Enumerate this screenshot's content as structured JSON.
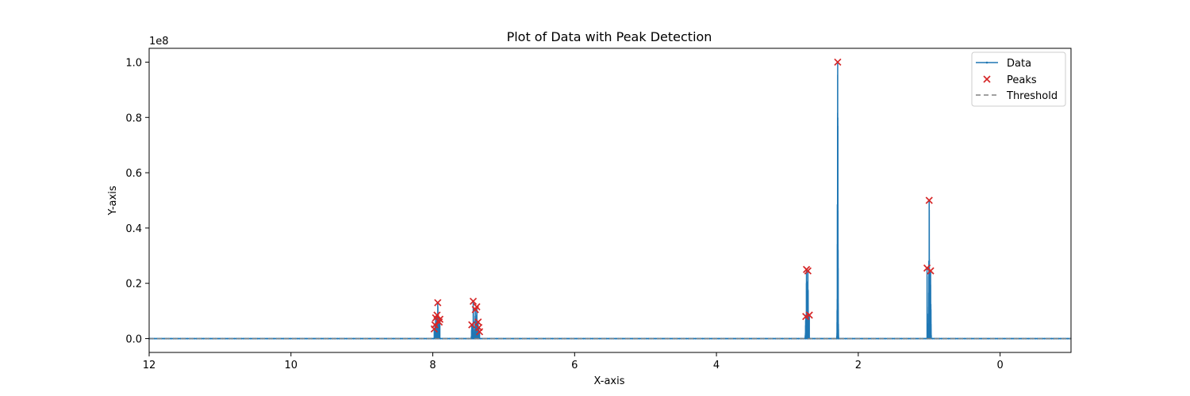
{
  "chart_data": {
    "type": "line",
    "title": "Plot of Data with Peak Detection",
    "xlabel": "X-axis",
    "ylabel": "Y-axis",
    "y_offset_label": "1e8",
    "x_inverted": true,
    "xlim": [
      12,
      -1
    ],
    "ylim": [
      -5000000,
      105000000
    ],
    "x_ticks": [
      12,
      10,
      8,
      6,
      4,
      2,
      0
    ],
    "x_tick_labels": [
      "12",
      "10",
      "8",
      "6",
      "4",
      "2",
      "0"
    ],
    "y_ticks": [
      0,
      20000000,
      40000000,
      60000000,
      80000000,
      100000000
    ],
    "y_tick_labels": [
      "0.0",
      "0.2",
      "0.4",
      "0.6",
      "0.8",
      "1.0"
    ],
    "grid": false,
    "legend_position": "top-right",
    "colors": {
      "data": "#1f77b4",
      "peaks": "#d62728",
      "threshold": "#808080"
    },
    "series": [
      {
        "name": "Data",
        "kind": "line",
        "clusters": [
          {
            "x_start": 7.98,
            "x_end": 7.9,
            "peak": 13000000
          },
          {
            "x_start": 7.46,
            "x_end": 7.34,
            "peak": 13500000
          },
          {
            "x_start": 2.75,
            "x_end": 2.69,
            "peak": 25000000
          },
          {
            "x_start": 2.31,
            "x_end": 2.27,
            "peak": 100000000
          },
          {
            "x_start": 1.03,
            "x_end": 0.97,
            "peak": 50000000
          }
        ]
      },
      {
        "name": "Peaks",
        "kind": "scatter",
        "points": [
          {
            "x": 7.98,
            "y": 3500000
          },
          {
            "x": 7.97,
            "y": 5000000
          },
          {
            "x": 7.96,
            "y": 7500000
          },
          {
            "x": 7.94,
            "y": 8500000
          },
          {
            "x": 7.93,
            "y": 13000000
          },
          {
            "x": 7.91,
            "y": 6000000
          },
          {
            "x": 7.9,
            "y": 7000000
          },
          {
            "x": 7.45,
            "y": 5000000
          },
          {
            "x": 7.43,
            "y": 13500000
          },
          {
            "x": 7.4,
            "y": 10500000
          },
          {
            "x": 7.38,
            "y": 11500000
          },
          {
            "x": 7.36,
            "y": 6000000
          },
          {
            "x": 7.35,
            "y": 4000000
          },
          {
            "x": 7.34,
            "y": 2500000
          },
          {
            "x": 2.74,
            "y": 8000000
          },
          {
            "x": 2.73,
            "y": 25000000
          },
          {
            "x": 2.71,
            "y": 24500000
          },
          {
            "x": 2.69,
            "y": 8500000
          },
          {
            "x": 2.29,
            "y": 100000000
          },
          {
            "x": 1.03,
            "y": 25500000
          },
          {
            "x": 1.0,
            "y": 50000000
          },
          {
            "x": 0.98,
            "y": 24500000
          }
        ]
      },
      {
        "name": "Threshold",
        "kind": "hline",
        "y": 0
      }
    ]
  }
}
